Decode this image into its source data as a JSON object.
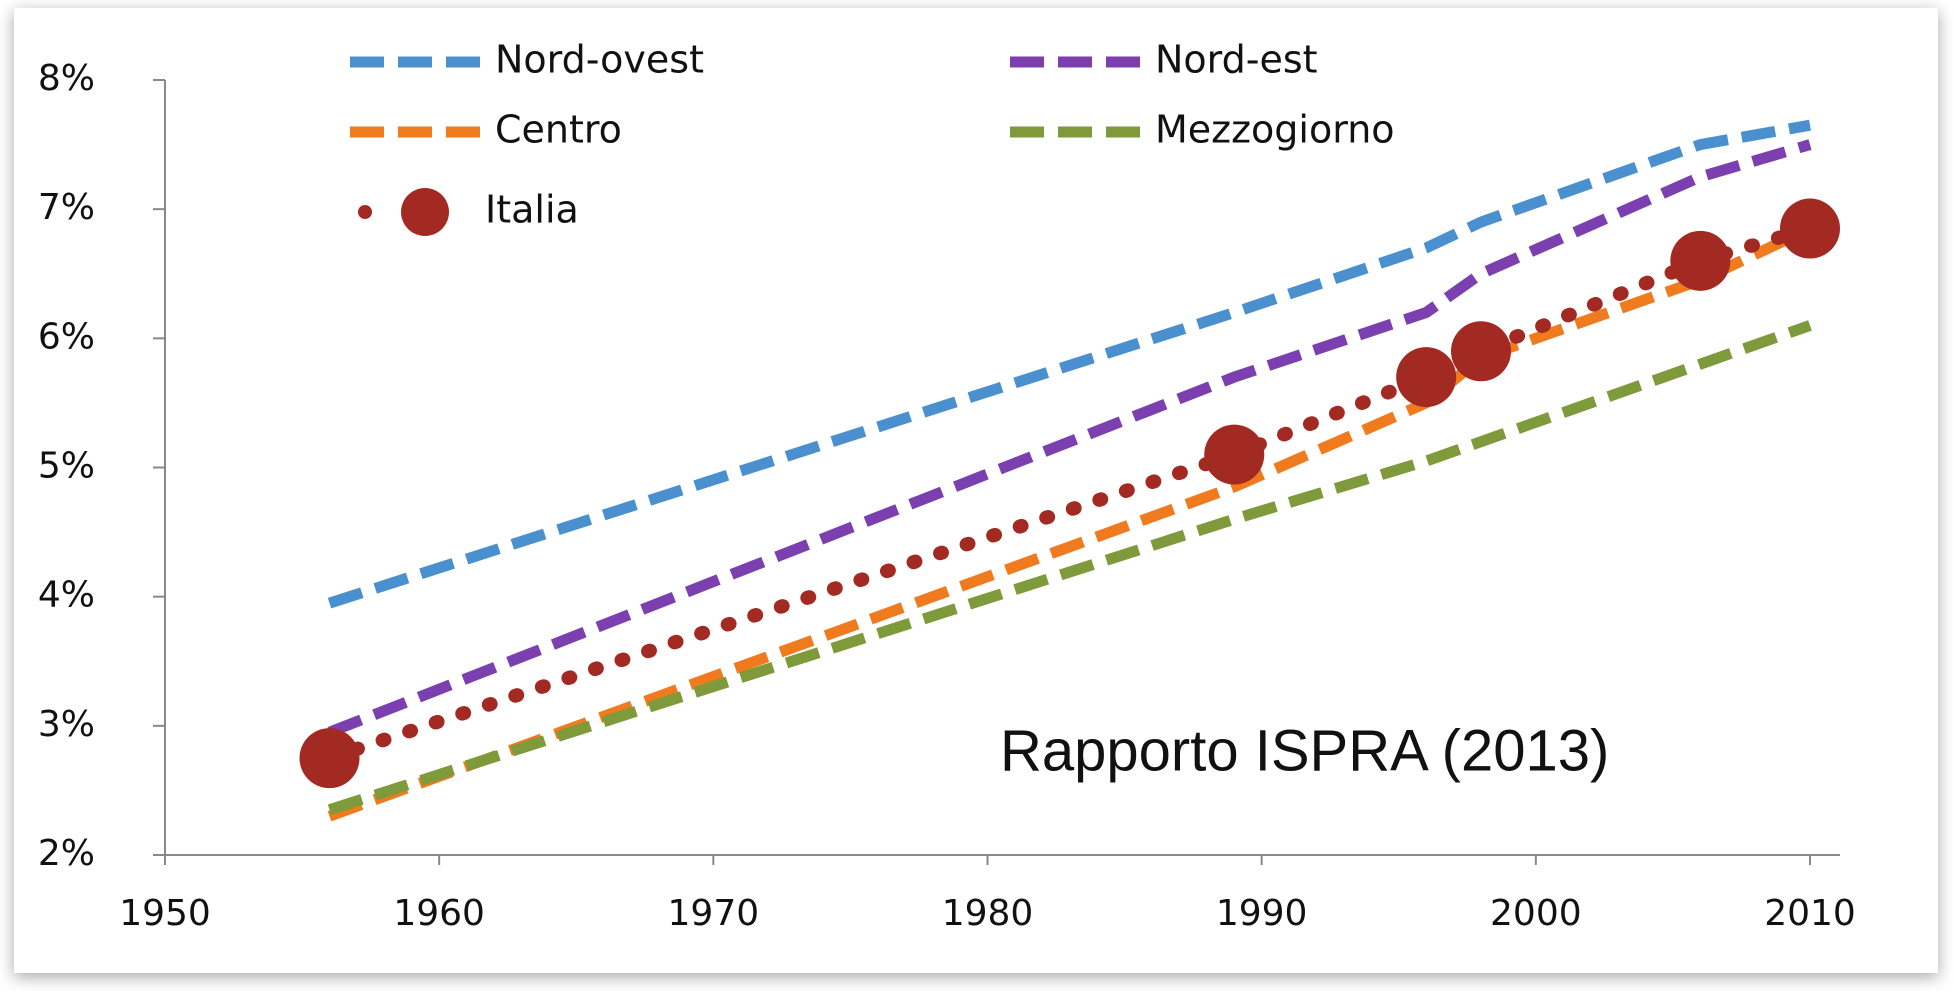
{
  "chart_data": {
    "type": "line",
    "x": [
      1956,
      1989,
      1996,
      1998,
      2006,
      2010
    ],
    "xlim": [
      1950,
      2010
    ],
    "xticks": [
      1950,
      1960,
      1970,
      1980,
      1990,
      2000,
      2010
    ],
    "ylim": [
      2,
      8
    ],
    "yticks": [
      {
        "value": 2,
        "label": "2%"
      },
      {
        "value": 3,
        "label": "3%"
      },
      {
        "value": 4,
        "label": "4%"
      },
      {
        "value": 5,
        "label": "5%"
      },
      {
        "value": 6,
        "label": "6%"
      },
      {
        "value": 7,
        "label": "7%"
      },
      {
        "value": 8,
        "label": "8%"
      }
    ],
    "series": [
      {
        "name": "Nord-ovest",
        "color": "#4a8fce",
        "values": [
          3.95,
          6.2,
          6.7,
          6.9,
          7.5,
          7.65
        ]
      },
      {
        "name": "Nord-est",
        "color": "#7b3fb0",
        "values": [
          2.95,
          5.7,
          6.2,
          6.5,
          7.25,
          7.5
        ]
      },
      {
        "name": "Centro",
        "color": "#f07b1e",
        "values": [
          2.3,
          4.85,
          5.5,
          5.85,
          6.45,
          6.85
        ]
      },
      {
        "name": "Mezzogiorno",
        "color": "#7f9a3a",
        "values": [
          2.35,
          4.6,
          5.05,
          5.2,
          5.8,
          6.1
        ]
      },
      {
        "name": "Italia",
        "color": "#a32a22",
        "values": [
          2.75,
          5.1,
          5.7,
          5.9,
          6.6,
          6.85
        ]
      }
    ],
    "annotation": "Rapporto ISPRA (2013)",
    "annotation_color": "#2e8b2e"
  }
}
